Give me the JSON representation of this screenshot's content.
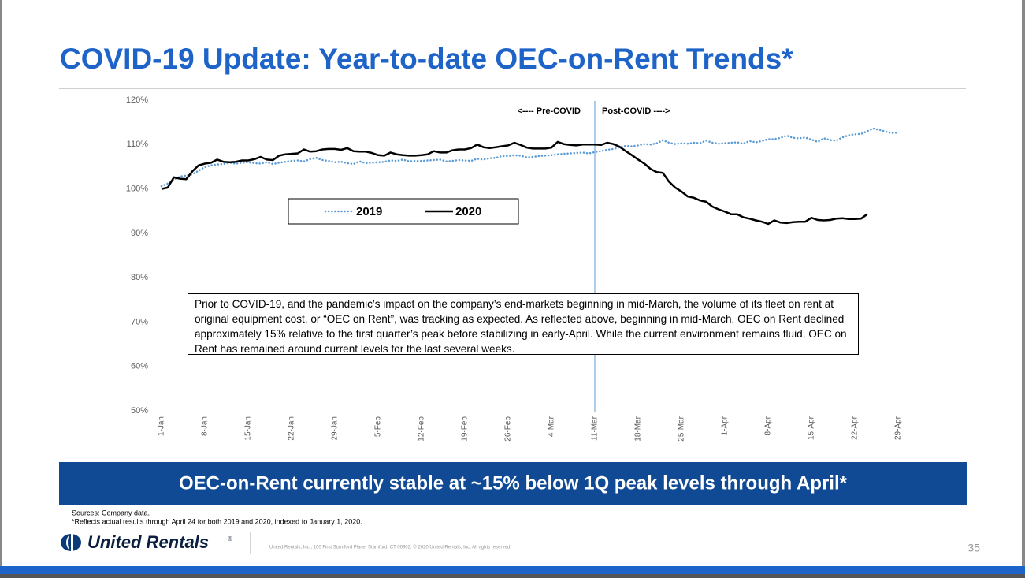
{
  "slide": {
    "title": "COVID-19 Update: Year-to-date OEC-on-Rent Trends*",
    "banner": "OEC-on-Rent currently stable at ~15% below 1Q peak levels through April*",
    "sources": "Sources: Company data.",
    "footnote": "*Reflects actual results through April 24 for both 2019 and 2020, indexed to January 1, 2020.",
    "logo": "United Rentals",
    "logo_mark": "®",
    "address": "United Rentals, Inc., 100 First Stamford Place, Stamford, CT 06902. © 2020 United Rentals, Inc. All rights reserved.",
    "page_number": 35
  },
  "chart_data": {
    "type": "line",
    "categories": [
      "1-Jan",
      null,
      null,
      null,
      null,
      null,
      null,
      "8-Jan",
      null,
      null,
      null,
      null,
      null,
      null,
      "15-Jan",
      null,
      null,
      null,
      null,
      null,
      null,
      "22-Jan",
      null,
      null,
      null,
      null,
      null,
      null,
      "29-Jan",
      null,
      null,
      null,
      null,
      null,
      null,
      "5-Feb",
      null,
      null,
      null,
      null,
      null,
      null,
      "12-Feb",
      null,
      null,
      null,
      null,
      null,
      null,
      "19-Feb",
      null,
      null,
      null,
      null,
      null,
      null,
      "26-Feb",
      null,
      null,
      null,
      null,
      null,
      null,
      "4-Mar",
      null,
      null,
      null,
      null,
      null,
      null,
      "11-Mar",
      null,
      null,
      null,
      null,
      null,
      null,
      "18-Mar",
      null,
      null,
      null,
      null,
      null,
      null,
      "25-Mar",
      null,
      null,
      null,
      null,
      null,
      null,
      "1-Apr",
      null,
      null,
      null,
      null,
      null,
      null,
      "8-Apr",
      null,
      null,
      null,
      null,
      null,
      null,
      "15-Apr",
      null,
      null,
      null,
      null,
      null,
      null,
      "22-Apr",
      null,
      null,
      null,
      null,
      null,
      null,
      "29-Apr"
    ],
    "series": [
      {
        "name": "2019",
        "color": "#5b9bd5",
        "dash": "dotted",
        "values": [
          100.6,
          101.2,
          102.0,
          102.8,
          103.0,
          103.3,
          104.1,
          104.9,
          105.3,
          105.5,
          105.6,
          105.9,
          105.7,
          105.9,
          106.0,
          105.8,
          105.7,
          106.0,
          105.6,
          105.9,
          106.1,
          106.3,
          106.4,
          106.2,
          106.7,
          107.0,
          106.5,
          106.3,
          106.0,
          106.1,
          105.8,
          105.6,
          106.2,
          105.8,
          105.9,
          106.0,
          106.1,
          106.4,
          106.3,
          106.6,
          106.2,
          106.3,
          106.3,
          106.4,
          106.5,
          106.6,
          106.2,
          106.3,
          106.5,
          106.4,
          106.3,
          106.8,
          106.6,
          106.9,
          107.0,
          107.4,
          107.4,
          107.6,
          107.5,
          107.1,
          107.2,
          107.4,
          107.5,
          107.6,
          107.8,
          107.9,
          108.0,
          108.1,
          108.2,
          108.0,
          108.3,
          108.5,
          108.8,
          109.0,
          109.4,
          109.7,
          109.6,
          109.8,
          110.1,
          110.0,
          110.3,
          111.0,
          110.4,
          110.1,
          110.3,
          110.2,
          110.4,
          110.3,
          110.9,
          110.4,
          110.2,
          110.3,
          110.4,
          110.5,
          110.2,
          110.8,
          110.5,
          110.8,
          111.2,
          111.2,
          111.5,
          112.0,
          111.5,
          111.4,
          111.6,
          111.1,
          110.6,
          111.4,
          111.0,
          110.9,
          111.6,
          112.1,
          112.3,
          112.4,
          113.0,
          113.6,
          113.3,
          112.9,
          112.6,
          112.7
        ]
      },
      {
        "name": "2020",
        "color": "#000000",
        "dash": "solid",
        "values": [
          100.0,
          100.3,
          102.6,
          102.3,
          102.2,
          104.0,
          105.3,
          105.7,
          105.9,
          106.6,
          106.1,
          106.0,
          106.1,
          106.4,
          106.4,
          106.7,
          107.2,
          106.6,
          106.5,
          107.5,
          107.8,
          107.9,
          108.0,
          108.9,
          108.4,
          108.5,
          108.9,
          109.0,
          109.0,
          108.8,
          109.2,
          108.5,
          108.4,
          108.4,
          108.1,
          107.6,
          107.5,
          108.2,
          107.8,
          107.6,
          107.5,
          107.5,
          107.6,
          107.8,
          108.5,
          108.2,
          108.2,
          108.7,
          108.9,
          108.9,
          109.2,
          110.0,
          109.4,
          109.2,
          109.4,
          109.6,
          109.8,
          110.4,
          109.9,
          109.3,
          109.1,
          109.1,
          109.1,
          109.3,
          110.6,
          110.1,
          109.9,
          109.8,
          110.0,
          110.0,
          110.0,
          109.9,
          110.4,
          110.1,
          109.5,
          108.5,
          107.6,
          106.6,
          105.7,
          104.5,
          103.8,
          103.6,
          101.6,
          100.3,
          99.4,
          98.3,
          98.0,
          97.4,
          97.1,
          96.0,
          95.4,
          94.9,
          94.3,
          94.3,
          93.6,
          93.3,
          92.9,
          92.6,
          92.1,
          92.9,
          92.4,
          92.3,
          92.5,
          92.6,
          92.6,
          93.5,
          93.0,
          92.9,
          93.0,
          93.3,
          93.4,
          93.2,
          93.2,
          93.3,
          94.3,
          null,
          null,
          null,
          null,
          null
        ]
      }
    ],
    "ylim": [
      50,
      120
    ],
    "yticks": [
      {
        "value": 50,
        "label": "50%"
      },
      {
        "value": 60,
        "label": "60%"
      },
      {
        "value": 70,
        "label": "70%"
      },
      {
        "value": 80,
        "label": "80%"
      },
      {
        "value": 90,
        "label": "90%"
      },
      {
        "value": 100,
        "label": "100%"
      },
      {
        "value": 110,
        "label": "110%"
      },
      {
        "value": 120,
        "label": "120%"
      }
    ],
    "grid": false,
    "divider_at": "11-Mar",
    "annotations": {
      "left": "<---- Pre-COVID",
      "right": "Post-COVID ---->"
    },
    "note": "Prior to COVID-19, and the pandemic’s impact on the company’s end-markets beginning in mid-March, the volume of its fleet on rent at original equipment cost, or “OEC on Rent”, was tracking as expected. As reflected above, beginning in mid-March, OEC on Rent declined approximately 15% relative to the first quarter’s peak before stabilizing in early-April. While the current environment remains fluid, OEC on Rent has remained around current levels for the last several weeks."
  }
}
